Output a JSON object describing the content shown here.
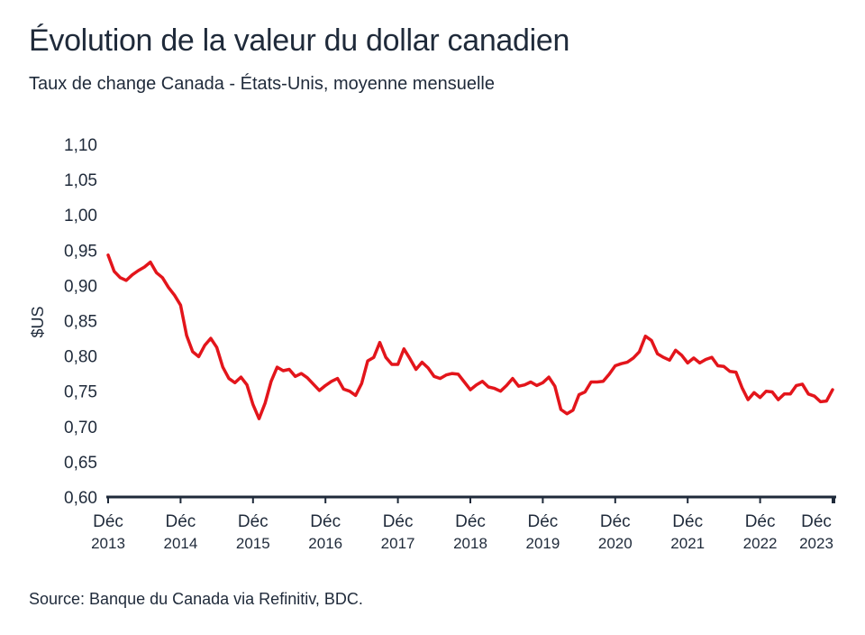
{
  "title": "Évolution de la valeur du dollar canadien",
  "subtitle": "Taux de change Canada - États-Unis, moyenne mensuelle",
  "source": "Source: Banque du Canada via Refinitiv, BDC.",
  "colors": {
    "line": "#e3151b",
    "axis": "#1f2a3a",
    "text": "#1f2a3a"
  },
  "chart_data": {
    "type": "line",
    "ylabel": "$US",
    "xlabel": "",
    "ylim": [
      0.6,
      1.1
    ],
    "y_ticks": [
      "1,10",
      "1,05",
      "1,00",
      "0,95",
      "0,90",
      "0,85",
      "0,80",
      "0,75",
      "0,70",
      "0,65",
      "0,60"
    ],
    "x_ticks": [
      {
        "month": "Déc",
        "year": "2013"
      },
      {
        "month": "Déc",
        "year": "2014"
      },
      {
        "month": "Déc",
        "year": "2015"
      },
      {
        "month": "Déc",
        "year": "2016"
      },
      {
        "month": "Déc",
        "year": "2017"
      },
      {
        "month": "Déc",
        "year": "2018"
      },
      {
        "month": "Déc",
        "year": "2019"
      },
      {
        "month": "Déc",
        "year": "2020"
      },
      {
        "month": "Déc",
        "year": "2021"
      },
      {
        "month": "Déc",
        "year": "2022"
      },
      {
        "month": "Déc",
        "year": "2023"
      }
    ],
    "grid": false,
    "legend": "none",
    "x_start": "2013-12",
    "x_end": "2024-01",
    "series": [
      {
        "values": [
          0.943,
          0.92,
          0.911,
          0.907,
          0.915,
          0.921,
          0.926,
          0.933,
          0.918,
          0.911,
          0.897,
          0.886,
          0.872,
          0.829,
          0.806,
          0.799,
          0.815,
          0.825,
          0.812,
          0.784,
          0.768,
          0.762,
          0.77,
          0.759,
          0.731,
          0.711,
          0.733,
          0.764,
          0.784,
          0.779,
          0.781,
          0.771,
          0.775,
          0.769,
          0.76,
          0.751,
          0.758,
          0.764,
          0.768,
          0.753,
          0.75,
          0.744,
          0.761,
          0.793,
          0.798,
          0.819,
          0.798,
          0.788,
          0.788,
          0.81,
          0.796,
          0.781,
          0.791,
          0.783,
          0.771,
          0.768,
          0.773,
          0.775,
          0.774,
          0.763,
          0.752,
          0.759,
          0.764,
          0.756,
          0.754,
          0.75,
          0.758,
          0.768,
          0.757,
          0.759,
          0.763,
          0.758,
          0.762,
          0.77,
          0.757,
          0.724,
          0.718,
          0.723,
          0.745,
          0.749,
          0.763,
          0.763,
          0.764,
          0.774,
          0.786,
          0.789,
          0.791,
          0.797,
          0.806,
          0.828,
          0.822,
          0.803,
          0.798,
          0.794,
          0.808,
          0.801,
          0.79,
          0.797,
          0.79,
          0.795,
          0.798,
          0.786,
          0.785,
          0.778,
          0.777,
          0.755,
          0.738,
          0.748,
          0.741,
          0.75,
          0.749,
          0.738,
          0.746,
          0.746,
          0.758,
          0.76,
          0.746,
          0.743,
          0.735,
          0.736,
          0.752
        ]
      }
    ]
  }
}
